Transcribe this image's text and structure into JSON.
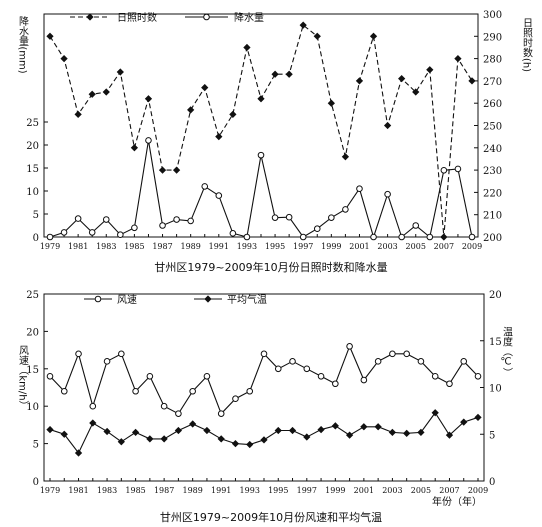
{
  "chart_data": [
    {
      "type": "line",
      "title": "甘州区1979~2009年10月份日照时数和降水量",
      "x": [
        1979,
        1980,
        1981,
        1982,
        1983,
        1984,
        1985,
        1986,
        1987,
        1988,
        1989,
        1990,
        1991,
        1992,
        1993,
        1994,
        1995,
        1996,
        1997,
        1998,
        1999,
        2000,
        2001,
        2002,
        2003,
        2004,
        2005,
        2006,
        2007,
        2008,
        2009
      ],
      "x_ticks": [
        "1979",
        "1981",
        "1983",
        "1985",
        "1987",
        "1989",
        "1991",
        "1993",
        "1995",
        "1997",
        "1999",
        "2001",
        "2003",
        "2005",
        "2007",
        "2009"
      ],
      "ylabel_left": "降水量(mm)",
      "ylabel_right": "日照时数(h)",
      "left_axis": {
        "range": [
          0,
          25
        ],
        "ticks": [
          "0",
          "5",
          "10",
          "15",
          "20",
          "25"
        ]
      },
      "right_axis": {
        "range": [
          200,
          300
        ],
        "ticks": [
          "200",
          "210",
          "220",
          "230",
          "240",
          "250",
          "260",
          "270",
          "280",
          "290",
          "300"
        ]
      },
      "legend": {
        "position": "top",
        "entries": [
          "日照时数",
          "降水量"
        ]
      },
      "series": [
        {
          "name": "日照时数",
          "axis": "right",
          "style": "dashed-diamond",
          "values": [
            290,
            280,
            255,
            264,
            265,
            274,
            240,
            262,
            230,
            230,
            257,
            267,
            245,
            255,
            285,
            262,
            273,
            273,
            295,
            290,
            260,
            236,
            270,
            290,
            250,
            271,
            265,
            275,
            200,
            280,
            270
          ]
        },
        {
          "name": "降水量",
          "axis": "left",
          "style": "solid-circle",
          "values": [
            0,
            1,
            4,
            1,
            3.8,
            0.5,
            2,
            21,
            2.5,
            3.8,
            3.5,
            11,
            9,
            0.8,
            0,
            17.8,
            4.2,
            4.3,
            0,
            1.8,
            4.2,
            6,
            10.5,
            0,
            9.3,
            0,
            2.5,
            0,
            14.5,
            14.8,
            0
          ]
        }
      ],
      "grid": false
    },
    {
      "type": "line",
      "title": "甘州区1979~2009年10月份风速和平均气温",
      "x": [
        1979,
        1980,
        1981,
        1982,
        1983,
        1984,
        1985,
        1986,
        1987,
        1988,
        1989,
        1990,
        1991,
        1992,
        1993,
        1994,
        1995,
        1996,
        1997,
        1998,
        1999,
        2000,
        2001,
        2002,
        2003,
        2004,
        2005,
        2006,
        2007,
        2008,
        2009
      ],
      "x_ticks": [
        "1979",
        "1981",
        "1983",
        "1985",
        "1987",
        "1989",
        "1991",
        "1993",
        "1995",
        "1997",
        "1999",
        "2001",
        "2003",
        "2005",
        "2007",
        "2009"
      ],
      "xlabel": "年份（年）",
      "ylabel_left": "风速（km/h）",
      "ylabel_right": "温度（℃）",
      "left_axis": {
        "range": [
          0,
          25
        ],
        "ticks": [
          "0",
          "5",
          "10",
          "15",
          "20",
          "25"
        ]
      },
      "right_axis": {
        "range": [
          0,
          20
        ],
        "ticks": [
          "0",
          "5",
          "10",
          "15",
          "20"
        ]
      },
      "legend": {
        "position": "top",
        "entries": [
          "风速",
          "平均气温"
        ]
      },
      "series": [
        {
          "name": "风速",
          "axis": "left",
          "style": "solid-circle",
          "values": [
            14,
            12,
            17,
            10,
            16,
            17,
            12,
            14,
            10,
            9,
            12,
            14,
            9,
            11,
            12,
            17,
            15,
            16,
            15,
            14,
            13,
            18,
            13.5,
            16,
            17,
            17,
            16,
            14,
            13,
            16,
            14
          ]
        },
        {
          "name": "平均气温",
          "axis": "right",
          "style": "solid-diamond",
          "values": [
            5.5,
            5,
            3,
            6.2,
            5.3,
            4.2,
            5.2,
            4.5,
            4.5,
            5.4,
            6.1,
            5.4,
            4.5,
            4,
            3.9,
            4.4,
            5.4,
            5.4,
            4.7,
            5.5,
            5.9,
            4.9,
            5.8,
            5.8,
            5.2,
            5.1,
            5.2,
            7.3,
            4.9,
            6.3,
            6.8
          ]
        }
      ],
      "grid": false
    }
  ]
}
